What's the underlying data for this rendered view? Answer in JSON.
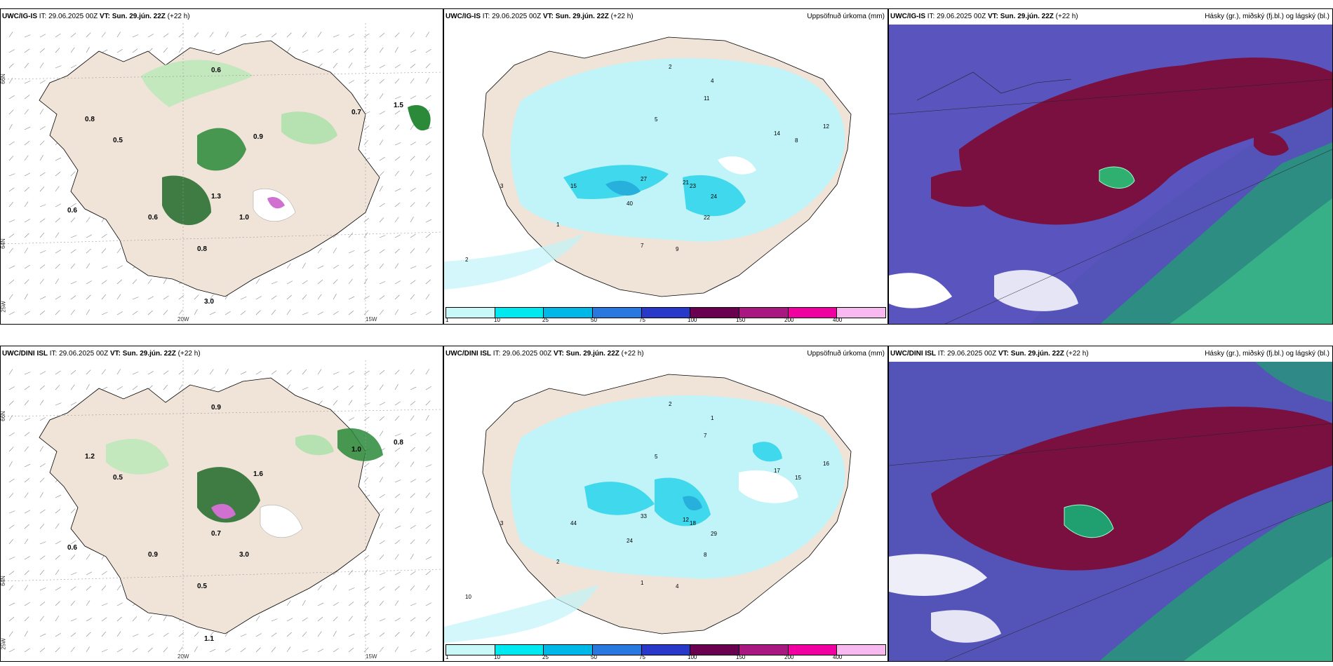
{
  "rows": [
    {
      "model": "UWC/IG-IS",
      "it": "IT: 29.06.2025 00Z",
      "vt": "VT: Sun. 29.jún. 22Z",
      "lead": "(+22 h)",
      "precip_title": "Uppsöfnuð úrkoma (mm)",
      "cloud_title": "Hásky (gr.), miðský (fj.bl.) og lágský (bl.)",
      "wind_values": [
        "0.6",
        "0.5",
        "0.6",
        "0.7",
        "0.8",
        "0.9",
        "1.0",
        "1.3",
        "1.5",
        "3.0",
        "0.8",
        "0.6"
      ],
      "precip_values": [
        "3",
        "5",
        "2",
        "4",
        "14",
        "8",
        "12",
        "23",
        "40",
        "27",
        "15",
        "24",
        "21",
        "22",
        "11",
        "9",
        "7",
        "1",
        "2"
      ]
    },
    {
      "model": "UWC/DINI ISL",
      "it": "IT: 29.06.2025 00Z",
      "vt": "VT: Sun. 29.jún. 22Z",
      "lead": "(+22 h)",
      "precip_title": "Uppsöfnuð úrkoma (mm)",
      "cloud_title": "Hásky (gr.), miðský (fj.bl.) og lágský (bl.)",
      "wind_values": [
        "0.6",
        "0.5",
        "0.9",
        "1.0",
        "1.2",
        "1.6",
        "3.0",
        "0.7",
        "0.8",
        "1.1",
        "0.5",
        "0.9"
      ],
      "precip_values": [
        "3",
        "5",
        "2",
        "1",
        "17",
        "15",
        "16",
        "18",
        "24",
        "33",
        "44",
        "29",
        "12",
        "8",
        "7",
        "4",
        "1",
        "2",
        "10"
      ]
    }
  ],
  "axis_labels": {
    "lon_20w": "20W",
    "lon_15w": "15W",
    "lat_66n": "66N",
    "lat_64n": "64N",
    "lat_25w": "25W"
  },
  "legend": {
    "ticks": [
      "1",
      "10",
      "25",
      "50",
      "75",
      "100",
      "150",
      "200",
      "400"
    ],
    "colors": [
      "#c8f8f8",
      "#00e8f0",
      "#00b8e8",
      "#2878e0",
      "#2838c8",
      "#6a0050",
      "#a81880",
      "#f000a0",
      "#f8b8f0"
    ]
  },
  "colors": {
    "land": "#f0e4d8",
    "precip_light": "#c0f4f8",
    "cloud_high": "#7a1040",
    "cloud_mid": "#5858c0",
    "cloud_low": "#20a070"
  }
}
